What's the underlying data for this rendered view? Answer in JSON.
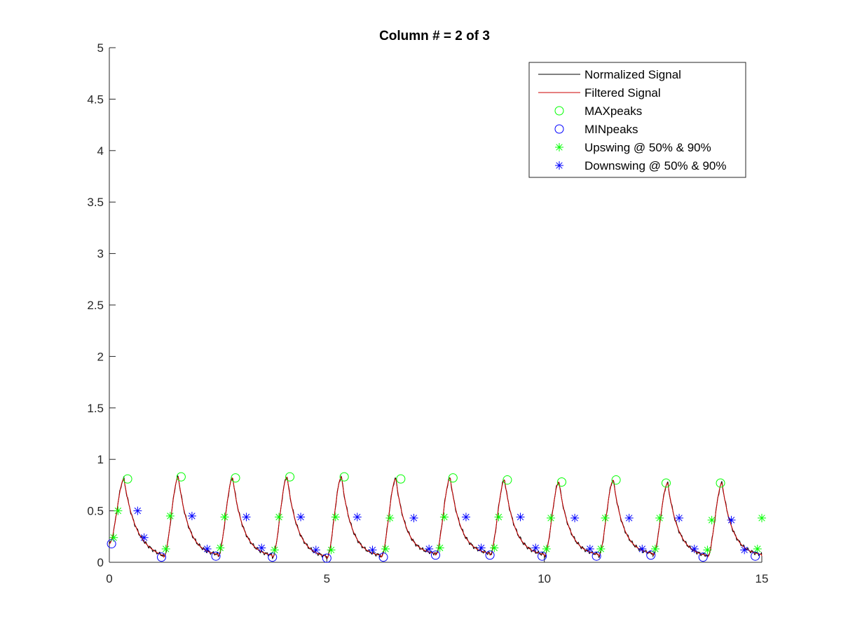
{
  "chart_data": {
    "type": "line",
    "title": "Column # = 2 of 3",
    "xlabel": "",
    "ylabel": "",
    "xlim": [
      0,
      15
    ],
    "ylim": [
      0,
      5
    ],
    "xticks": [
      0,
      5,
      10,
      15
    ],
    "xtick_labels": [
      "0",
      "5",
      "10",
      "15"
    ],
    "yticks": [
      0,
      0.5,
      1,
      1.5,
      2,
      2.5,
      3,
      3.5,
      4,
      4.5,
      5
    ],
    "ytick_labels": [
      "0",
      "0.5",
      "1",
      "1.5",
      "2",
      "2.5",
      "3",
      "3.5",
      "4",
      "4.5",
      "5"
    ],
    "grid": false,
    "legend_position": "top-right",
    "cycle_period": 1.25,
    "cycle_peak_phase": 0.27,
    "series": [
      {
        "name": "Normalized Signal",
        "kind": "line",
        "color": "#000000"
      },
      {
        "name": "Filtered Signal",
        "kind": "line",
        "color": "#cc0000"
      },
      {
        "name": "MAXpeaks",
        "kind": "marker",
        "marker": "circle",
        "color": "#00ff00",
        "x": [
          0.42,
          1.65,
          2.9,
          4.15,
          5.4,
          6.7,
          7.9,
          9.15,
          10.4,
          11.65,
          12.8,
          14.05
        ],
        "y": [
          0.81,
          0.83,
          0.82,
          0.83,
          0.83,
          0.81,
          0.82,
          0.8,
          0.78,
          0.8,
          0.77,
          0.77
        ]
      },
      {
        "name": "MINpeaks",
        "kind": "marker",
        "marker": "circle",
        "color": "#0000ff",
        "x": [
          0.05,
          1.2,
          2.45,
          3.75,
          5.0,
          6.3,
          7.5,
          8.75,
          9.95,
          11.2,
          12.45,
          13.65,
          14.85
        ],
        "y": [
          0.18,
          0.05,
          0.06,
          0.05,
          0.04,
          0.05,
          0.07,
          0.07,
          0.06,
          0.06,
          0.07,
          0.05,
          0.06
        ]
      },
      {
        "name": "Upswing @ 50% & 90%",
        "kind": "marker",
        "marker": "asterisk",
        "color": "#00ff00",
        "x": [
          0.1,
          0.2,
          1.3,
          1.4,
          2.55,
          2.65,
          3.8,
          3.9,
          5.1,
          5.2,
          6.35,
          6.45,
          7.6,
          7.7,
          8.85,
          8.95,
          10.05,
          10.15,
          11.3,
          11.4,
          12.55,
          12.65,
          13.75,
          13.85,
          14.9,
          15.0
        ],
        "y": [
          0.24,
          0.5,
          0.13,
          0.45,
          0.14,
          0.44,
          0.12,
          0.44,
          0.12,
          0.44,
          0.13,
          0.43,
          0.14,
          0.44,
          0.14,
          0.44,
          0.13,
          0.43,
          0.13,
          0.43,
          0.13,
          0.43,
          0.12,
          0.41,
          0.13,
          0.43
        ]
      },
      {
        "name": "Downswing @ 50% & 90%",
        "kind": "marker",
        "marker": "asterisk",
        "color": "#0000ff",
        "x": [
          0.65,
          0.8,
          1.9,
          2.25,
          3.15,
          3.5,
          4.4,
          4.75,
          5.7,
          6.05,
          7.0,
          7.35,
          8.2,
          8.55,
          9.45,
          9.8,
          10.7,
          11.05,
          11.95,
          12.25,
          13.1,
          13.45,
          14.3,
          14.6
        ],
        "y": [
          0.5,
          0.24,
          0.45,
          0.13,
          0.44,
          0.14,
          0.44,
          0.12,
          0.44,
          0.12,
          0.43,
          0.13,
          0.44,
          0.14,
          0.44,
          0.14,
          0.43,
          0.13,
          0.43,
          0.13,
          0.43,
          0.13,
          0.41,
          0.12
        ]
      }
    ]
  }
}
